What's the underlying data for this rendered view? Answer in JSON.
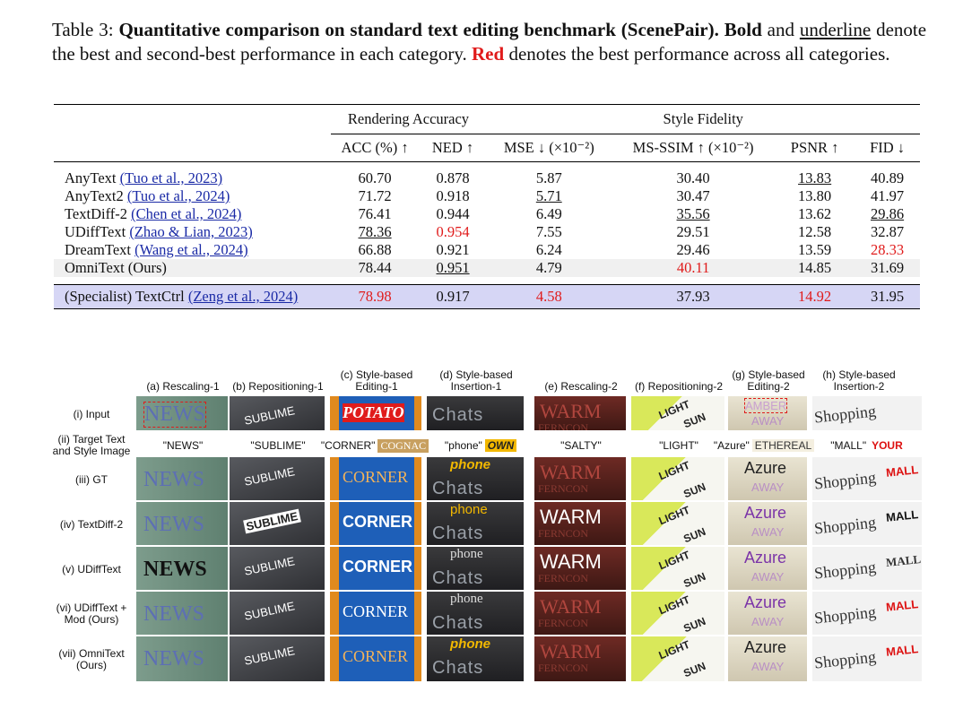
{
  "caption": {
    "label": "Table 3:",
    "title": "Quantitative comparison on standard text editing benchmark (ScenePair).",
    "bold_word": "Bold",
    "and_word": "and",
    "underline_word": "underline",
    "mid_text": "denote the best and second-best performance in each category.",
    "red_word": "Red",
    "end_text": "denotes the best performance across all categories."
  },
  "table": {
    "groups": [
      "Rendering Accuracy",
      "Style Fidelity"
    ],
    "columns": [
      "ACC (%) ↑",
      "NED ↑",
      "MSE ↓ (×10⁻²)",
      "MS-SSIM ↑ (×10⁻²)",
      "PSNR ↑",
      "FID ↓"
    ],
    "rows": [
      {
        "method": "AnyText",
        "cite": "(Tuo et al., 2023)",
        "values": [
          "60.70",
          "0.878",
          "5.87",
          "30.40",
          "13.83",
          "40.89"
        ]
      },
      {
        "method": "AnyText2",
        "cite": "(Tuo et al., 2024)",
        "values": [
          "71.72",
          "0.918",
          "5.71",
          "30.47",
          "13.80",
          "41.97"
        ]
      },
      {
        "method": "TextDiff-2",
        "cite": "(Chen et al., 2024)",
        "values": [
          "76.41",
          "0.944",
          "6.49",
          "35.56",
          "13.62",
          "29.86"
        ]
      },
      {
        "method": "UDiffText",
        "cite": "(Zhao & Lian, 2023)",
        "values": [
          "78.36",
          "0.954",
          "7.55",
          "29.51",
          "12.58",
          "32.87"
        ]
      },
      {
        "method": "DreamText",
        "cite": "(Wang et al., 2024)",
        "values": [
          "66.88",
          "0.921",
          "6.24",
          "29.46",
          "13.59",
          "28.33"
        ]
      },
      {
        "method": "OmniText (Ours)",
        "cite": "",
        "values": [
          "78.44",
          "0.951",
          "4.79",
          "40.11",
          "14.85",
          "31.69"
        ]
      }
    ],
    "specialist": {
      "method": "(Specialist) TextCtrl",
      "cite": "(Zeng et al., 2024)",
      "values": [
        "78.98",
        "0.917",
        "4.58",
        "37.93",
        "14.92",
        "31.95"
      ]
    }
  },
  "figure": {
    "column_headers": [
      "(a) Rescaling-1",
      "(b) Repositioning-1",
      "(c) Style-based Editing-1",
      "(d) Style-based Insertion-1",
      "(e) Rescaling-2",
      "(f) Repositioning-2",
      "(g) Style-based Editing-2",
      "(h) Style-based Insertion-2"
    ],
    "row_labels": [
      "(i) Input",
      "(ii) Target Text and Style Image",
      "(iii) GT",
      "(iv) TextDiff-2",
      "(v) UDiffText",
      "(vi) UDiffText + Mod (Ours)",
      "(vii) OmniText (Ours)"
    ],
    "targets": [
      "\"NEWS\"",
      "\"SUBLIME\"",
      "\"CORNER\"",
      "\"phone\"",
      "\"SALTY\"",
      "\"LIGHT\"",
      "\"Azure\"",
      "\"MALL\""
    ],
    "style_swatches": {
      "c": "COGNAC",
      "d": "OWN",
      "g": "ETHEREAL",
      "h": "YOUR"
    },
    "words": {
      "news": "NEWS",
      "sublime": "SUBLIME",
      "potato": "POTATO",
      "corner": "CORNER",
      "chats": "Chats",
      "phone": "phone",
      "warm": "WARM",
      "fern": "FERNCON",
      "light": "LIGHT",
      "sun": "SUN",
      "amber": "AMBER",
      "away": "AWAY",
      "azure": "Azure",
      "shopping": "Shopping",
      "mall": "MALL"
    }
  },
  "colors": {
    "red": "#e01b1b",
    "cite_blue": "#1a2aa6",
    "specialist_bg": "#d6d6f5",
    "omni_bg": "#f0f0f0"
  }
}
